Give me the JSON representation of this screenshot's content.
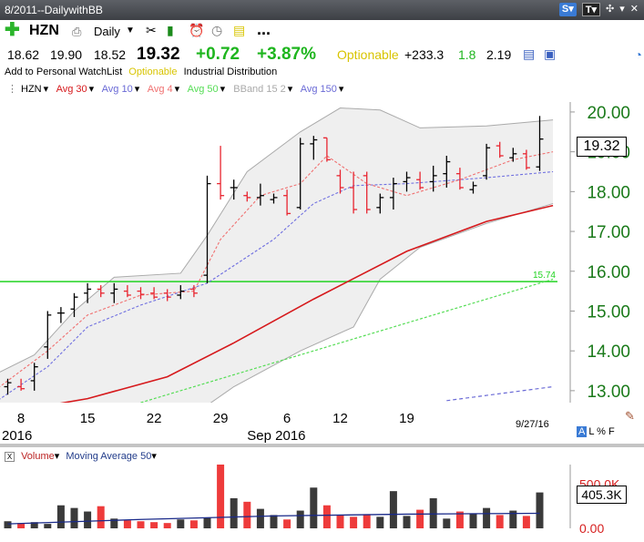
{
  "window": {
    "title": "8/2011--DailywithBB"
  },
  "toolbar": {
    "symbol": "HZN",
    "period": "Daily",
    "more": "..."
  },
  "quote": {
    "open": "18.62",
    "high": "19.90",
    "low": "18.52",
    "last": "19.32",
    "change": "+0.72",
    "pct": "+3.87%",
    "optionable": "Optionable",
    "val1": "+233.3",
    "val2": "1.8",
    "val3": "2.19"
  },
  "info": {
    "watchlist": "Add to Personal WatchList",
    "optionable": "Optionable",
    "industry": "Industrial Distribution"
  },
  "legend": {
    "sym": "HZN",
    "avg30": "Avg 30",
    "avg10": "Avg 10",
    "avg4": "Avg 4",
    "avg50": "Avg 50",
    "bband": "BBand 15 2",
    "avg150": "Avg 150"
  },
  "colors": {
    "up": "#000000",
    "down": "#e8242f",
    "avg30": "#d6191c",
    "avg10": "#7070e0",
    "avg4": "#f07070",
    "avg50": "#55dd55",
    "bband": "#aaaaaa",
    "avg150": "#6a6ad6",
    "hline": "#22d322",
    "price_axis": "#1a7a1a",
    "vol_up": "#3a3a3a",
    "vol_down": "#ee3b3b"
  },
  "price_box": "19.32",
  "vol_box": "405.3K",
  "date_label": "9/27/16",
  "lpf": {
    "a": "A",
    "rest": "L % F"
  },
  "vol_legend": {
    "box": "X",
    "volume": "Volume",
    "ma": "Moving Average 50"
  },
  "chart_data": {
    "type": "candlestick",
    "hline": 15.74,
    "hline_label": "15.74",
    "ylim": [
      12.7,
      20.25
    ],
    "y_ticks": [
      "20.00",
      "19.00",
      "18.00",
      "17.00",
      "16.00",
      "15.00",
      "14.00",
      "13.00"
    ],
    "y_tick_values": [
      20,
      19,
      18,
      17,
      16,
      15,
      14,
      13
    ],
    "x_labels": [
      {
        "i": 1,
        "t": "8"
      },
      {
        "i": 6,
        "t": "15"
      },
      {
        "i": 11,
        "t": "22"
      },
      {
        "i": 16,
        "t": "29"
      },
      {
        "i": 18,
        "t": "Sep 2016"
      },
      {
        "i": 21,
        "t": "6"
      },
      {
        "i": 25,
        "t": "12"
      },
      {
        "i": 30,
        "t": "19"
      }
    ],
    "x_left_label": "2016",
    "bars": [
      {
        "o": 13.1,
        "h": 13.3,
        "l": 12.9,
        "c": 13.2
      },
      {
        "o": 13.1,
        "h": 13.3,
        "l": 13.0,
        "c": 13.05
      },
      {
        "o": 13.25,
        "h": 13.7,
        "l": 13.0,
        "c": 13.6
      },
      {
        "o": 14.1,
        "h": 15.0,
        "l": 13.8,
        "c": 14.9
      },
      {
        "o": 14.95,
        "h": 15.1,
        "l": 14.7,
        "c": 14.95
      },
      {
        "o": 15.05,
        "h": 15.45,
        "l": 14.85,
        "c": 15.35
      },
      {
        "o": 15.45,
        "h": 15.7,
        "l": 15.2,
        "c": 15.55
      },
      {
        "o": 15.55,
        "h": 15.65,
        "l": 15.35,
        "c": 15.45
      },
      {
        "o": 15.45,
        "h": 15.7,
        "l": 15.2,
        "c": 15.55
      },
      {
        "o": 15.5,
        "h": 15.65,
        "l": 15.35,
        "c": 15.4
      },
      {
        "o": 15.5,
        "h": 15.6,
        "l": 15.3,
        "c": 15.42
      },
      {
        "o": 15.45,
        "h": 15.6,
        "l": 15.3,
        "c": 15.35
      },
      {
        "o": 15.45,
        "h": 15.55,
        "l": 15.25,
        "c": 15.35
      },
      {
        "o": 15.4,
        "h": 15.65,
        "l": 15.3,
        "c": 15.5
      },
      {
        "o": 15.55,
        "h": 15.65,
        "l": 15.35,
        "c": 15.45
      },
      {
        "o": 15.9,
        "h": 18.4,
        "l": 15.7,
        "c": 18.2
      },
      {
        "o": 18.2,
        "h": 19.15,
        "l": 17.8,
        "c": 17.9
      },
      {
        "o": 18.1,
        "h": 18.3,
        "l": 17.8,
        "c": 18.1
      },
      {
        "o": 17.9,
        "h": 18.0,
        "l": 17.75,
        "c": 17.85
      },
      {
        "o": 17.85,
        "h": 18.2,
        "l": 17.65,
        "c": 17.9
      },
      {
        "o": 17.8,
        "h": 17.95,
        "l": 17.7,
        "c": 17.85
      },
      {
        "o": 17.9,
        "h": 18.05,
        "l": 17.4,
        "c": 17.45
      },
      {
        "o": 17.6,
        "h": 19.35,
        "l": 17.55,
        "c": 19.2
      },
      {
        "o": 19.2,
        "h": 19.4,
        "l": 18.8,
        "c": 19.3
      },
      {
        "o": 19.35,
        "h": 19.35,
        "l": 18.75,
        "c": 18.8
      },
      {
        "o": 18.4,
        "h": 18.55,
        "l": 17.95,
        "c": 18.1
      },
      {
        "o": 18.1,
        "h": 18.5,
        "l": 17.45,
        "c": 17.55
      },
      {
        "o": 18.4,
        "h": 18.5,
        "l": 17.45,
        "c": 17.55
      },
      {
        "o": 17.6,
        "h": 17.95,
        "l": 17.45,
        "c": 17.85
      },
      {
        "o": 17.85,
        "h": 18.35,
        "l": 17.55,
        "c": 18.2
      },
      {
        "o": 18.25,
        "h": 18.5,
        "l": 18.0,
        "c": 18.35
      },
      {
        "o": 18.3,
        "h": 18.5,
        "l": 18.05,
        "c": 18.1
      },
      {
        "o": 18.25,
        "h": 18.65,
        "l": 18.0,
        "c": 18.4
      },
      {
        "o": 18.45,
        "h": 18.9,
        "l": 18.1,
        "c": 18.75
      },
      {
        "o": 18.45,
        "h": 18.6,
        "l": 18.05,
        "c": 18.1
      },
      {
        "o": 18.05,
        "h": 18.25,
        "l": 17.95,
        "c": 18.15
      },
      {
        "o": 18.4,
        "h": 19.2,
        "l": 18.3,
        "c": 19.1
      },
      {
        "o": 19.15,
        "h": 19.25,
        "l": 18.85,
        "c": 18.9
      },
      {
        "o": 18.85,
        "h": 19.1,
        "l": 18.75,
        "c": 18.95
      },
      {
        "o": 18.95,
        "h": 19.05,
        "l": 18.55,
        "c": 18.6
      },
      {
        "o": 18.62,
        "h": 19.9,
        "l": 18.52,
        "c": 19.32
      }
    ],
    "avg30": [
      {
        "i": -1,
        "v": 12.4
      },
      {
        "i": 6,
        "v": 12.8
      },
      {
        "i": 12,
        "v": 13.35
      },
      {
        "i": 17,
        "v": 14.2
      },
      {
        "i": 23,
        "v": 15.3
      },
      {
        "i": 30,
        "v": 16.5
      },
      {
        "i": 36,
        "v": 17.25
      },
      {
        "i": 41,
        "v": 17.65
      }
    ],
    "avg10": [
      {
        "i": -1,
        "v": 12.7
      },
      {
        "i": 3,
        "v": 13.6
      },
      {
        "i": 6,
        "v": 14.6
      },
      {
        "i": 10,
        "v": 15.15
      },
      {
        "i": 15,
        "v": 15.7
      },
      {
        "i": 20,
        "v": 16.8
      },
      {
        "i": 23,
        "v": 17.7
      },
      {
        "i": 26,
        "v": 18.15
      },
      {
        "i": 30,
        "v": 18.2
      },
      {
        "i": 36,
        "v": 18.35
      },
      {
        "i": 41,
        "v": 18.5
      }
    ],
    "avg4": [
      {
        "i": -1,
        "v": 13.0
      },
      {
        "i": 3,
        "v": 14.0
      },
      {
        "i": 6,
        "v": 14.9
      },
      {
        "i": 10,
        "v": 15.4
      },
      {
        "i": 14,
        "v": 15.5
      },
      {
        "i": 16,
        "v": 16.8
      },
      {
        "i": 19,
        "v": 17.9
      },
      {
        "i": 22,
        "v": 18.2
      },
      {
        "i": 24,
        "v": 18.9
      },
      {
        "i": 27,
        "v": 18.2
      },
      {
        "i": 30,
        "v": 17.9
      },
      {
        "i": 34,
        "v": 18.3
      },
      {
        "i": 38,
        "v": 18.8
      },
      {
        "i": 41,
        "v": 19.0
      }
    ],
    "avg50": [
      {
        "i": 10,
        "v": 12.7
      },
      {
        "i": 20,
        "v": 13.7
      },
      {
        "i": 30,
        "v": 14.7
      },
      {
        "i": 41,
        "v": 15.8
      }
    ],
    "avg150": [
      {
        "i": 33,
        "v": 12.75
      },
      {
        "i": 41,
        "v": 13.1
      }
    ],
    "bb_upper": [
      {
        "i": -1,
        "v": 13.4
      },
      {
        "i": 2,
        "v": 13.9
      },
      {
        "i": 5,
        "v": 15.0
      },
      {
        "i": 8,
        "v": 15.85
      },
      {
        "i": 13,
        "v": 15.95
      },
      {
        "i": 15,
        "v": 16.9
      },
      {
        "i": 18,
        "v": 18.5
      },
      {
        "i": 22,
        "v": 19.5
      },
      {
        "i": 25,
        "v": 20.1
      },
      {
        "i": 28,
        "v": 20.05
      },
      {
        "i": 31,
        "v": 19.6
      },
      {
        "i": 36,
        "v": 19.65
      },
      {
        "i": 41,
        "v": 19.8
      }
    ],
    "bb_lower": [
      {
        "i": -1,
        "v": 12.1
      },
      {
        "i": 5,
        "v": 12.2
      },
      {
        "i": 10,
        "v": 12.2
      },
      {
        "i": 14,
        "v": 12.4
      },
      {
        "i": 17,
        "v": 13.1
      },
      {
        "i": 22,
        "v": 14.0
      },
      {
        "i": 26,
        "v": 14.6
      },
      {
        "i": 28,
        "v": 15.8
      },
      {
        "i": 31,
        "v": 16.6
      },
      {
        "i": 36,
        "v": 17.2
      },
      {
        "i": 41,
        "v": 17.7
      }
    ],
    "volume": {
      "ticks": [
        "500.0K",
        "0.00"
      ],
      "tick_values": [
        500000,
        0
      ],
      "ylim": [
        0,
        720000
      ],
      "values": [
        80000,
        60000,
        70000,
        50000,
        260000,
        230000,
        190000,
        250000,
        110000,
        90000,
        80000,
        70000,
        60000,
        100000,
        90000,
        120000,
        720000,
        340000,
        300000,
        220000,
        150000,
        100000,
        200000,
        460000,
        260000,
        150000,
        130000,
        160000,
        130000,
        420000,
        140000,
        210000,
        340000,
        110000,
        190000,
        160000,
        230000,
        150000,
        200000,
        140000,
        405300
      ],
      "ma": [
        {
          "i": 0,
          "v": 50000
        },
        {
          "i": 10,
          "v": 100000
        },
        {
          "i": 20,
          "v": 140000
        },
        {
          "i": 30,
          "v": 160000
        },
        {
          "i": 40,
          "v": 170000
        }
      ]
    }
  }
}
